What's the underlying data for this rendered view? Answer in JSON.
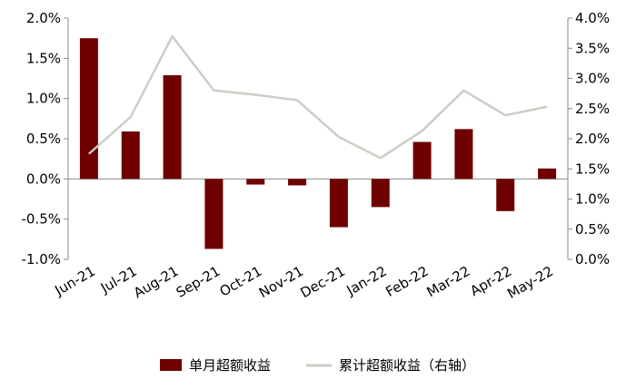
{
  "chart_data": {
    "type": "bar+line",
    "categories": [
      "Jun-21",
      "Jul-21",
      "Aug-21",
      "Sep-21",
      "Oct-21",
      "Nov-21",
      "Dec-21",
      "Jan-22",
      "Feb-22",
      "Mar-22",
      "Apr-22",
      "May-22"
    ],
    "series": [
      {
        "name": "单月超额收益",
        "type": "bar",
        "axis": "left",
        "color": "#6e0000",
        "values": [
          1.75,
          0.59,
          1.29,
          -0.87,
          -0.07,
          -0.08,
          -0.6,
          -0.35,
          0.46,
          0.62,
          -0.4,
          0.13
        ]
      },
      {
        "name": "累计超额收益（右轴）",
        "type": "line",
        "axis": "right",
        "color": "#c9cfc4",
        "values": [
          1.75,
          2.36,
          3.7,
          2.8,
          2.73,
          2.64,
          2.03,
          1.68,
          2.13,
          2.8,
          2.39,
          2.53
        ]
      }
    ],
    "y_left": {
      "min": -1.0,
      "max": 2.0,
      "ticks": [
        "2.0%",
        "1.5%",
        "1.0%",
        "0.5%",
        "0.0%",
        "-0.5%",
        "-1.0%"
      ],
      "tick_values": [
        2.0,
        1.5,
        1.0,
        0.5,
        0.0,
        -0.5,
        -1.0
      ]
    },
    "y_right": {
      "min": 0.0,
      "max": 4.0,
      "ticks": [
        "4.0%",
        "3.5%",
        "3.0%",
        "2.5%",
        "2.0%",
        "1.5%",
        "1.0%",
        "0.5%",
        "0.0%"
      ],
      "tick_values": [
        4.0,
        3.5,
        3.0,
        2.5,
        2.0,
        1.5,
        1.0,
        0.5,
        0.0
      ]
    },
    "legend_position": "bottom",
    "grid": false
  }
}
